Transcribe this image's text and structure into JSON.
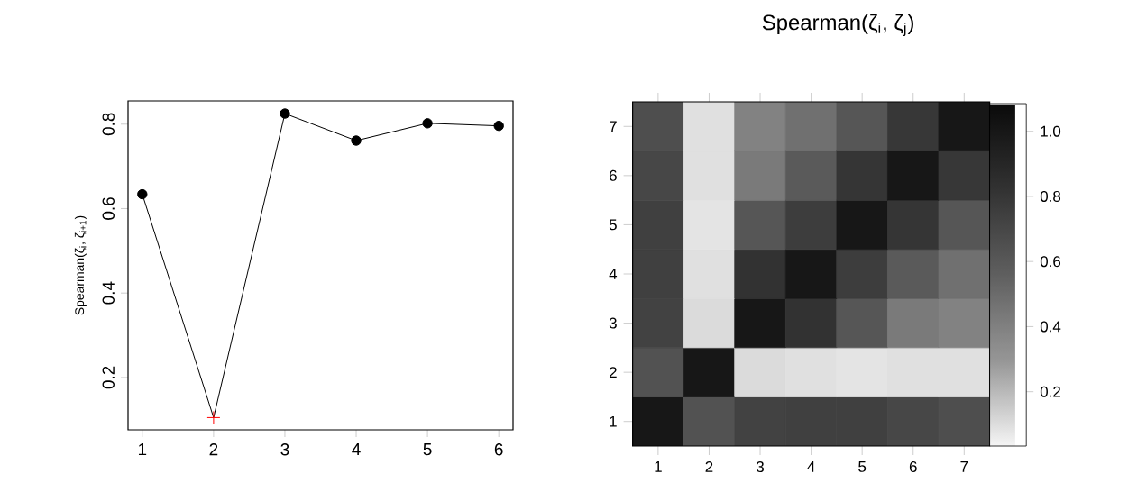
{
  "chart_data": [
    {
      "type": "line",
      "ylabel": "Spearman(ζ$_{i}$, ζ$_{i+1}$)",
      "x": [
        1,
        2,
        3,
        4,
        5,
        6
      ],
      "xlim": [
        0.8,
        6.2
      ],
      "xticks": [
        1,
        2,
        3,
        4,
        5,
        6
      ],
      "ylim": [
        0.076,
        0.855
      ],
      "yticks": [
        0.2,
        0.4,
        0.6,
        0.8
      ],
      "series": [
        {
          "type": "line",
          "color": "#000000",
          "marker": "none",
          "values": [
            0.634,
            0.105,
            0.825,
            0.761,
            0.802,
            0.796
          ]
        },
        {
          "type": "scatter",
          "color": "#000000",
          "marker": "circle",
          "values": [
            0.634,
            null,
            0.825,
            0.761,
            0.802,
            0.796
          ]
        },
        {
          "type": "scatter",
          "color": "#ff0000",
          "marker": "cross",
          "values": [
            null,
            0.105,
            null,
            null,
            null,
            null
          ]
        }
      ]
    },
    {
      "type": "heatmap",
      "title": "Spearman(ζ$_{i}$, ζ$_{j}$)",
      "categories": [
        "1",
        "2",
        "3",
        "4",
        "5",
        "6",
        "7"
      ],
      "y_categories": [
        "7",
        "6",
        "5",
        "4",
        "3",
        "2",
        "1"
      ],
      "cells": [
        [
          0.66,
          0.09,
          0.39,
          0.48,
          0.61,
          0.796,
          1.0
        ],
        [
          0.7,
          0.09,
          0.43,
          0.59,
          0.802,
          1.0,
          0.796
        ],
        [
          0.74,
          0.08,
          0.61,
          0.761,
          1.0,
          0.802,
          0.61
        ],
        [
          0.74,
          0.09,
          0.825,
          1.0,
          0.761,
          0.59,
          0.48
        ],
        [
          0.73,
          0.105,
          1.0,
          0.825,
          0.61,
          0.43,
          0.39
        ],
        [
          0.634,
          1.0,
          0.105,
          0.09,
          0.08,
          0.09,
          0.09
        ],
        [
          1.0,
          0.634,
          0.73,
          0.74,
          0.74,
          0.7,
          0.66
        ]
      ],
      "clim": [
        0.033,
        1.085
      ],
      "cticks": [
        0.2,
        0.4,
        0.6,
        0.8,
        {
          "value": 1.0,
          "label": "1.0"
        }
      ]
    }
  ]
}
